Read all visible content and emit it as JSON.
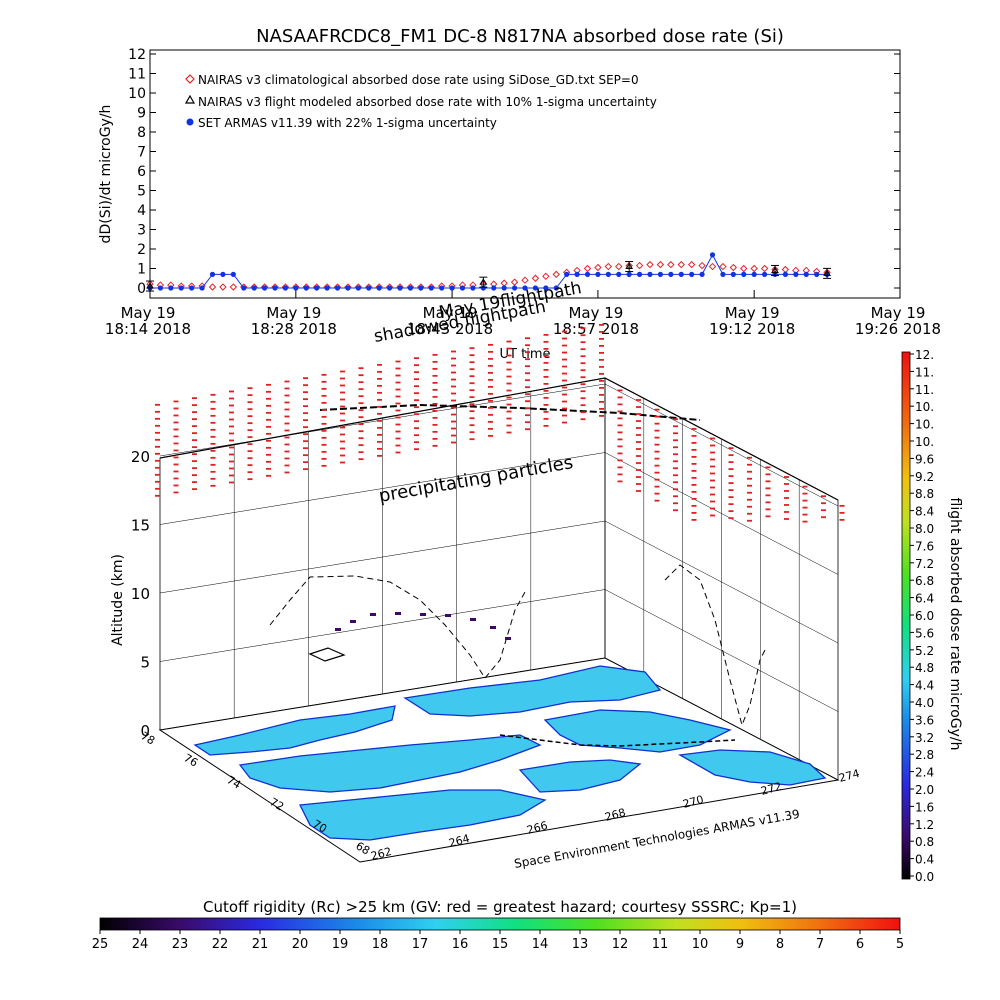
{
  "chart_data": [
    {
      "type": "scatter",
      "title": "NASAAFRCDC8_FM1 DC-8    N817NA absorbed dose rate (Si)",
      "ylabel": "dD(Si)/dt microGy/h",
      "xlabel": "UT time",
      "ylim": [
        0,
        12
      ],
      "y_ticks": [
        "0",
        "1",
        "2",
        "3",
        "4",
        "5",
        "6",
        "7",
        "8",
        "9",
        "10",
        "11",
        "12"
      ],
      "x_ticks": [
        {
          "t": 0,
          "line1": "May 19",
          "line2": "18:14 2018"
        },
        {
          "t": 14,
          "line1": "May 19",
          "line2": "18:28 2018"
        },
        {
          "t": 29,
          "line1": "May 19",
          "line2": "18:43 2018"
        },
        {
          "t": 43,
          "line1": "May 19",
          "line2": "18:57 2018"
        },
        {
          "t": 58,
          "line1": "May 19",
          "line2": "19:12 2018"
        },
        {
          "t": 72,
          "line1": "May 19",
          "line2": "19:26 2018"
        }
      ],
      "xlim_minutes_after_first_tick": [
        0,
        72
      ],
      "legend": [
        {
          "marker": "diamond",
          "color": "#e8202a",
          "label": "NAIRAS v3 climatological absorbed dose rate using SiDose_GD.txt SEP=0"
        },
        {
          "marker": "triangle",
          "color": "#000000",
          "label": "NAIRAS v3 flight modeled absorbed dose rate with 10% 1-sigma uncertainty"
        },
        {
          "marker": "circle",
          "color": "#1034e0",
          "label": "SET ARMAS v11.39 with 22% 1-sigma uncertainty"
        }
      ],
      "series": [
        {
          "name": "NAIRAS v3 climatological absorbed dose rate using SiDose_GD.txt SEP=0",
          "x": [
            0,
            1,
            2,
            3,
            4,
            5,
            6,
            7,
            8,
            9,
            10,
            11,
            12,
            13,
            14,
            15,
            16,
            17,
            18,
            19,
            20,
            21,
            22,
            23,
            24,
            25,
            26,
            27,
            28,
            29,
            30,
            31,
            32,
            33,
            34,
            35,
            36,
            37,
            38,
            39,
            40,
            41,
            42,
            43,
            44,
            45,
            46,
            47,
            48,
            49,
            50,
            51,
            52,
            53,
            54,
            55,
            56,
            57,
            58,
            59,
            60,
            61,
            62,
            63,
            64,
            65
          ],
          "values": [
            0.2,
            0.15,
            0.15,
            0.1,
            0.1,
            0.1,
            0.05,
            0.05,
            0.05,
            0.05,
            0.05,
            0.05,
            0.05,
            0.05,
            0.05,
            0.05,
            0.05,
            0.05,
            0.05,
            0.05,
            0.05,
            0.05,
            0.05,
            0.05,
            0.05,
            0.05,
            0.05,
            0.05,
            0.1,
            0.1,
            0.15,
            0.15,
            0.2,
            0.2,
            0.25,
            0.3,
            0.4,
            0.5,
            0.6,
            0.7,
            0.8,
            0.9,
            1.0,
            1.05,
            1.1,
            1.1,
            1.15,
            1.15,
            1.2,
            1.2,
            1.2,
            1.2,
            1.2,
            1.15,
            1.1,
            1.1,
            1.05,
            1.0,
            1.0,
            1.0,
            0.95,
            0.95,
            0.9,
            0.9,
            0.85,
            0.8
          ]
        },
        {
          "name": "NAIRAS v3 flight modeled absorbed dose rate with 10% 1-sigma uncertainty",
          "x": [
            0,
            32,
            46,
            60,
            65
          ],
          "values": [
            0.1,
            0.3,
            1.1,
            0.9,
            0.75
          ]
        },
        {
          "name": "SET ARMAS v11.39 with 22% 1-sigma uncertainty",
          "x": [
            0,
            1,
            2,
            3,
            4,
            5,
            6,
            7,
            8,
            9,
            10,
            11,
            12,
            13,
            14,
            15,
            16,
            17,
            18,
            19,
            20,
            21,
            22,
            23,
            24,
            25,
            26,
            27,
            28,
            29,
            30,
            31,
            32,
            33,
            34,
            35,
            36,
            37,
            38,
            39,
            40,
            41,
            42,
            43,
            44,
            45,
            46,
            47,
            48,
            49,
            50,
            51,
            52,
            53,
            54,
            55,
            56,
            57,
            58,
            59,
            60,
            61,
            62,
            63,
            64,
            65
          ],
          "values": [
            0,
            0,
            0,
            0,
            0,
            0,
            0.7,
            0.7,
            0.7,
            0,
            0,
            0,
            0,
            0,
            0,
            0,
            0,
            0,
            0,
            0,
            0,
            0,
            0,
            0,
            0,
            0,
            0,
            0,
            0,
            0,
            0,
            0,
            0,
            0,
            0,
            0,
            0,
            0,
            0,
            0,
            0.7,
            0.7,
            0.7,
            0.7,
            0.7,
            0.7,
            0.7,
            0.7,
            0.7,
            0.7,
            0.7,
            0.7,
            0.7,
            0.7,
            1.7,
            0.7,
            0.7,
            0.7,
            0.7,
            0.7,
            0.7,
            0.7,
            0.7,
            0.7,
            0.7,
            0.7
          ]
        }
      ]
    },
    {
      "type": "scatter",
      "title": "",
      "ylabel": "Altitude (km)",
      "z_ticks": [
        "0",
        "5",
        "10",
        "15",
        "20"
      ],
      "lat_ticks": [
        "68",
        "70",
        "72",
        "74",
        "76",
        "78"
      ],
      "lon_ticks": [
        "262",
        "264",
        "266",
        "268",
        "270",
        "272",
        "274"
      ],
      "annotations": {
        "overlay_text": "shadowed flightpath",
        "overlay_text_2": "May 19flightpath",
        "precip": "precipitating particles",
        "credit": "Space Environment Technologies ARMAS v11.39"
      }
    }
  ],
  "right_colorbar": {
    "label": "flight absorbed dose rate microGy/h",
    "ticks": [
      "12.",
      "11.",
      "11.",
      "10.",
      "10.",
      "10.",
      "9.6",
      "9.2",
      "8.8",
      "8.4",
      "8.0",
      "7.6",
      "7.2",
      "6.8",
      "6.4",
      "6.0",
      "5.6",
      "5.2",
      "4.8",
      "4.4",
      "4.0",
      "3.6",
      "3.2",
      "2.8",
      "2.4",
      "2.0",
      "1.6",
      "1.2",
      "0.8",
      "0.4",
      "0.0"
    ]
  },
  "bottom_colorbar": {
    "label": "Cutoff rigidity (Rc) >25 km (GV: red = greatest hazard; courtesy SSSRC; Kp=1)",
    "ticks": [
      "25",
      "24",
      "23",
      "22",
      "21",
      "20",
      "19",
      "18",
      "17",
      "16",
      "15",
      "14",
      "13",
      "12",
      "11",
      "10",
      "9",
      "8",
      "7",
      "6",
      "5"
    ]
  },
  "colors": {
    "nairas_clim": "#e8202a",
    "armas": "#1034e0",
    "flight_model": "#000000",
    "land": "#40c8ee",
    "land_edge": "#1030d0"
  }
}
